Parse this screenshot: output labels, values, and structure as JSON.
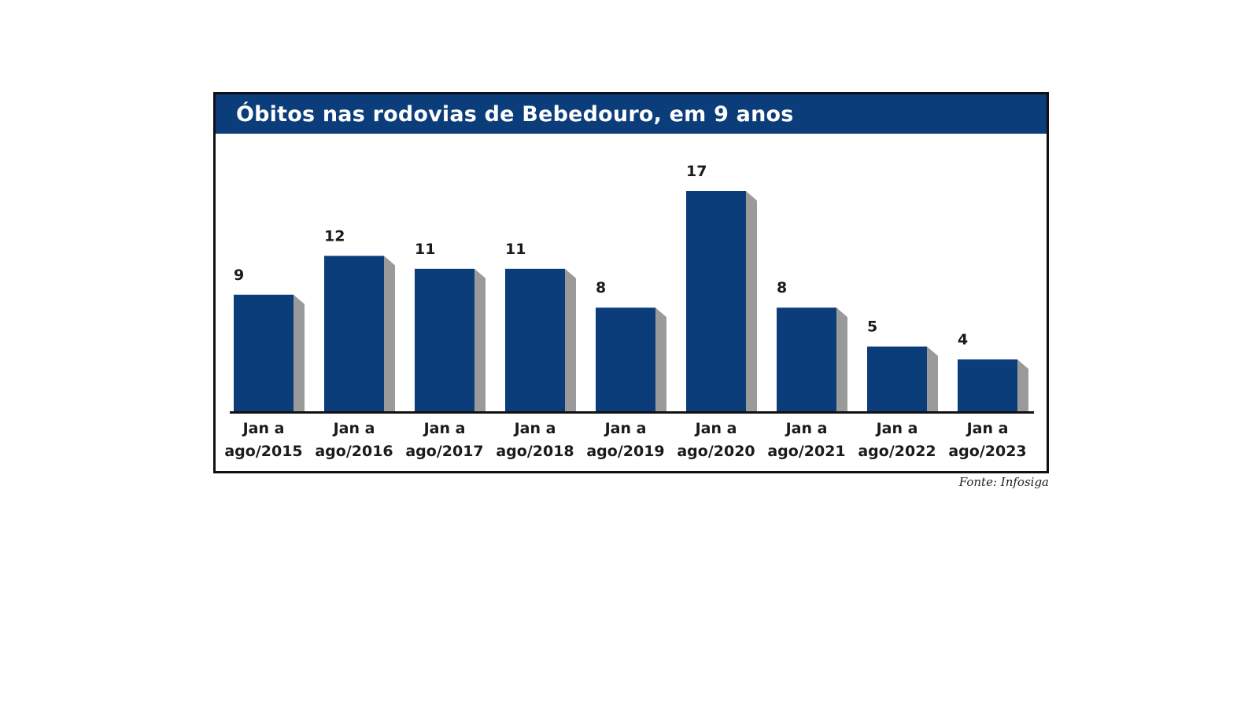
{
  "chart_data": {
    "type": "bar",
    "title": "Óbitos nas rodovias de Bebedouro, em 9 anos",
    "categories": [
      [
        "Jan a",
        "ago/2015"
      ],
      [
        "Jan a",
        "ago/2016"
      ],
      [
        "Jan a",
        "ago/2017"
      ],
      [
        "Jan a",
        "ago/2018"
      ],
      [
        "Jan a",
        "ago/2019"
      ],
      [
        "Jan a",
        "ago/2020"
      ],
      [
        "Jan a",
        "ago/2021"
      ],
      [
        "Jan a",
        "ago/2022"
      ],
      [
        "Jan a",
        "ago/2023"
      ]
    ],
    "values": [
      9,
      12,
      11,
      11,
      8,
      17,
      8,
      5,
      4
    ],
    "value_labels": [
      "9",
      "12",
      "11",
      "11",
      "8",
      "17",
      "8",
      "5",
      "4"
    ],
    "ylim": [
      0,
      17
    ],
    "grid": false,
    "legend": "none",
    "source": "Fonte: Infosiga",
    "colors": {
      "bar": "#0b3d7b",
      "bar_side": "#9a9a9a",
      "title_bar": "#0b3d7b",
      "title_text": "#ffffff",
      "axis": "#111111"
    }
  }
}
